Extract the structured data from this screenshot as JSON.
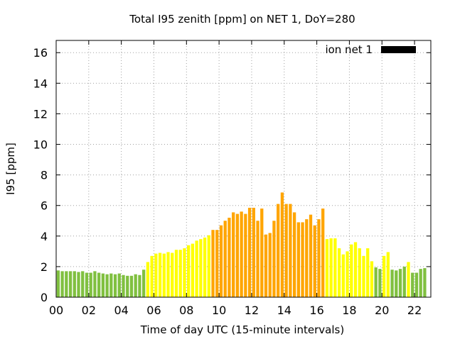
{
  "chart_data": {
    "type": "bar",
    "title": "Total I95 zenith [ppm] on NET 1, DoY=280",
    "xlabel": "Time of day UTC (15-minute intervals)",
    "ylabel": "I95 [ppm]",
    "xlim": [
      0,
      23
    ],
    "ylim": [
      0,
      16.8
    ],
    "xticks": [
      0,
      2,
      4,
      6,
      8,
      10,
      12,
      14,
      16,
      18,
      20,
      22
    ],
    "xtick_labels": [
      "00",
      "02",
      "04",
      "06",
      "08",
      "10",
      "12",
      "14",
      "16",
      "18",
      "20",
      "22"
    ],
    "yticks": [
      0,
      2,
      4,
      6,
      8,
      10,
      12,
      14,
      16
    ],
    "ytick_labels": [
      "0",
      "2",
      "4",
      "6",
      "8",
      "10",
      "12",
      "14",
      "16"
    ],
    "grid": true,
    "legend": {
      "label": "ion net 1",
      "placement": "top-right",
      "swatch_color": "#000000"
    },
    "interval_hours": 0.25,
    "level_colors": {
      "low": "#80c040",
      "moderate": "#ffff00",
      "high": "#ffa500"
    },
    "values": [
      1.75,
      1.7,
      1.7,
      1.7,
      1.7,
      1.65,
      1.7,
      1.6,
      1.6,
      1.7,
      1.6,
      1.55,
      1.5,
      1.55,
      1.5,
      1.55,
      1.45,
      1.4,
      1.4,
      1.5,
      1.45,
      1.8,
      2.3,
      2.7,
      2.85,
      2.9,
      2.85,
      2.95,
      2.9,
      3.1,
      3.1,
      3.2,
      3.4,
      3.5,
      3.7,
      3.8,
      3.9,
      4.05,
      4.4,
      4.4,
      4.7,
      5.0,
      5.2,
      5.55,
      5.45,
      5.6,
      5.45,
      5.85,
      5.85,
      5.0,
      5.8,
      4.1,
      4.2,
      5.0,
      6.1,
      6.85,
      6.1,
      6.1,
      5.55,
      4.9,
      4.9,
      5.1,
      5.4,
      4.7,
      5.1,
      5.8,
      3.8,
      3.85,
      3.85,
      3.2,
      2.8,
      3.0,
      3.45,
      3.6,
      3.2,
      2.7,
      3.2,
      2.35,
      1.95,
      1.85,
      2.7,
      2.95,
      1.8,
      1.75,
      1.85,
      2.0,
      2.3,
      1.6,
      1.6,
      1.85,
      1.9
    ],
    "levels": [
      "low",
      "low",
      "low",
      "low",
      "low",
      "low",
      "low",
      "low",
      "low",
      "low",
      "low",
      "low",
      "low",
      "low",
      "low",
      "low",
      "low",
      "low",
      "low",
      "low",
      "low",
      "low",
      "moderate",
      "moderate",
      "moderate",
      "moderate",
      "moderate",
      "moderate",
      "moderate",
      "moderate",
      "moderate",
      "moderate",
      "moderate",
      "moderate",
      "moderate",
      "moderate",
      "moderate",
      "moderate",
      "high",
      "high",
      "high",
      "high",
      "high",
      "high",
      "high",
      "high",
      "high",
      "high",
      "high",
      "high",
      "high",
      "high",
      "high",
      "high",
      "high",
      "high",
      "high",
      "high",
      "high",
      "high",
      "high",
      "high",
      "high",
      "high",
      "high",
      "high",
      "moderate",
      "moderate",
      "moderate",
      "moderate",
      "moderate",
      "moderate",
      "moderate",
      "moderate",
      "moderate",
      "moderate",
      "moderate",
      "moderate",
      "low",
      "low",
      "moderate",
      "moderate",
      "low",
      "low",
      "low",
      "low",
      "moderate",
      "low",
      "low",
      "low",
      "low"
    ]
  }
}
